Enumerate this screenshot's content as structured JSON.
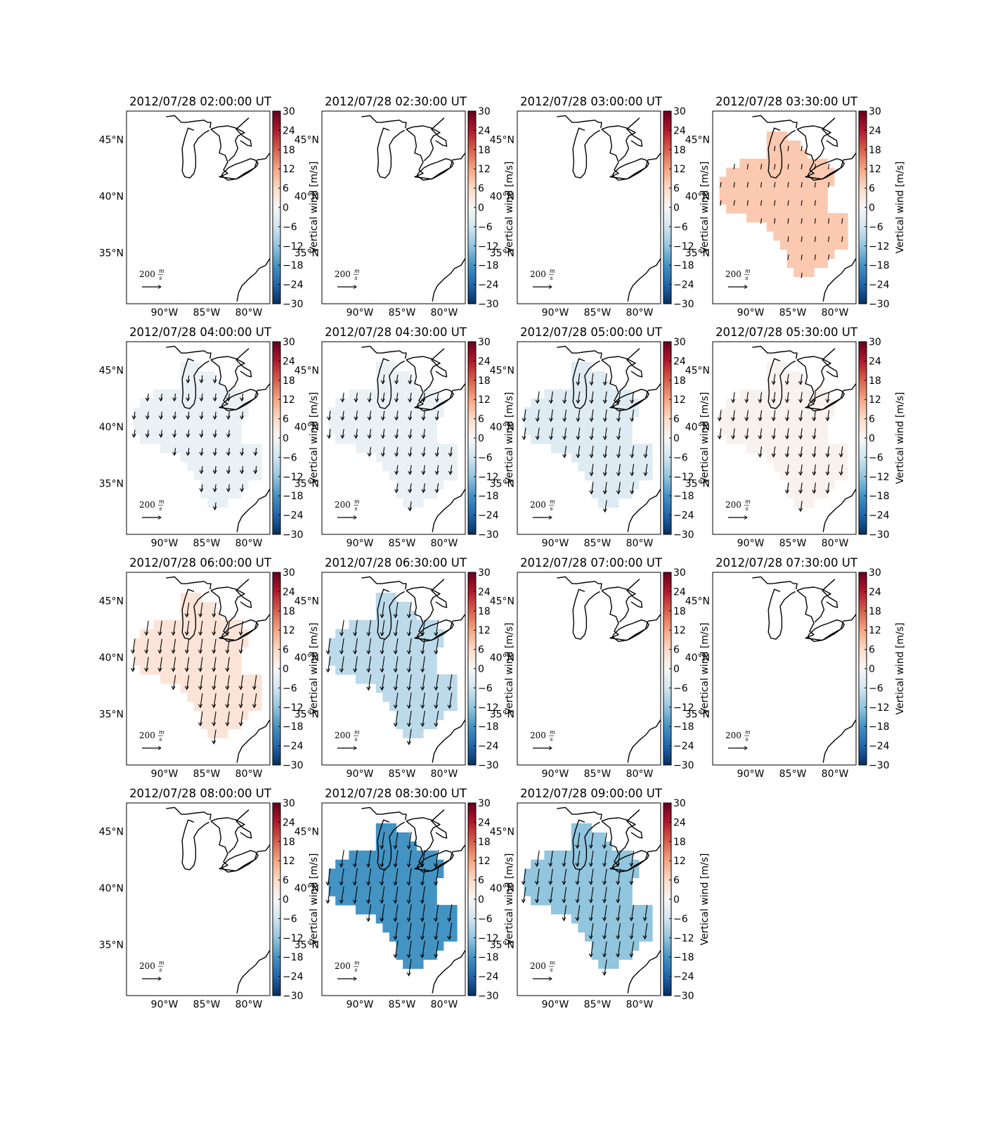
{
  "figure": {
    "colorbar_label": "Vertical wind [m/s]",
    "colorbar_ticks": [
      "30",
      "24",
      "18",
      "12",
      "6",
      "0",
      "−6",
      "−12",
      "−18",
      "−24",
      "−30"
    ],
    "x_tick_labels": [
      "90°W",
      "85°W",
      "80°W"
    ],
    "y_tick_labels": [
      "45°N",
      "40°N",
      "35°N"
    ],
    "scale_value": "200",
    "scale_unit_top": "m",
    "scale_unit_bottom": "s",
    "colormap": {
      "name": "RdBu_r",
      "stops": [
        "#053061",
        "#2166ac",
        "#4393c3",
        "#92c5de",
        "#d1e5f0",
        "#f7f7f7",
        "#fddbc7",
        "#f4a582",
        "#d6604d",
        "#b2182b",
        "#67001f"
      ]
    }
  },
  "chart_data": [
    {
      "type": "heatmap",
      "title": "2012/07/28 02:00:00 UT",
      "field_value": null,
      "arrow_scale": 0,
      "vmin": -30,
      "vmax": 30
    },
    {
      "type": "heatmap",
      "title": "2012/07/28 02:30:00 UT",
      "field_value": null,
      "arrow_scale": 0,
      "vmin": -30,
      "vmax": 30
    },
    {
      "type": "heatmap",
      "title": "2012/07/28 03:00:00 UT",
      "field_value": null,
      "arrow_scale": 0,
      "vmin": -30,
      "vmax": 30
    },
    {
      "type": "heatmap",
      "title": "2012/07/28 03:30:00 UT",
      "field_value": 8,
      "arrow_scale": 0.2,
      "vmin": -30,
      "vmax": 30
    },
    {
      "type": "heatmap",
      "title": "2012/07/28 04:00:00 UT",
      "field_value": -2,
      "arrow_scale": 0.35,
      "vmin": -30,
      "vmax": 30
    },
    {
      "type": "heatmap",
      "title": "2012/07/28 04:30:00 UT",
      "field_value": -2,
      "arrow_scale": 0.5,
      "vmin": -30,
      "vmax": 30
    },
    {
      "type": "heatmap",
      "title": "2012/07/28 05:00:00 UT",
      "field_value": -4,
      "arrow_scale": 0.7,
      "vmin": -30,
      "vmax": 30
    },
    {
      "type": "heatmap",
      "title": "2012/07/28 05:30:00 UT",
      "field_value": 1,
      "arrow_scale": 0.6,
      "vmin": -30,
      "vmax": 30
    },
    {
      "type": "heatmap",
      "title": "2012/07/28 06:00:00 UT",
      "field_value": 4,
      "arrow_scale": 0.9,
      "vmin": -30,
      "vmax": 30
    },
    {
      "type": "heatmap",
      "title": "2012/07/28 06:30:00 UT",
      "field_value": -8,
      "arrow_scale": 1.0,
      "vmin": -30,
      "vmax": 30
    },
    {
      "type": "heatmap",
      "title": "2012/07/28 07:00:00 UT",
      "field_value": null,
      "arrow_scale": 0,
      "vmin": -30,
      "vmax": 30
    },
    {
      "type": "heatmap",
      "title": "2012/07/28 07:30:00 UT",
      "field_value": null,
      "arrow_scale": 0,
      "vmin": -30,
      "vmax": 30
    },
    {
      "type": "heatmap",
      "title": "2012/07/28 08:00:00 UT",
      "field_value": null,
      "arrow_scale": 0,
      "vmin": -30,
      "vmax": 30
    },
    {
      "type": "heatmap",
      "title": "2012/07/28 08:30:00 UT",
      "field_value": -18,
      "arrow_scale": 1.1,
      "vmin": -30,
      "vmax": 30
    },
    {
      "type": "heatmap",
      "title": "2012/07/28 09:00:00 UT",
      "field_value": -12,
      "arrow_scale": 1.0,
      "vmin": -30,
      "vmax": 30
    }
  ]
}
